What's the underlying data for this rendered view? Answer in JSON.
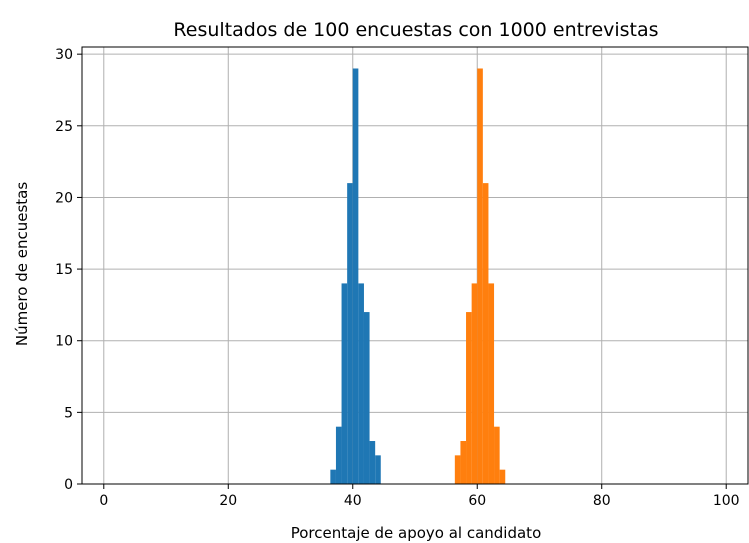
{
  "chart_data": {
    "type": "bar",
    "title": "Resultados de 100 encuestas con 1000 entrevistas",
    "xlabel": "Porcentaje de apoyo al candidato",
    "ylabel": "Número de encuestas",
    "xlim": [
      -3.5,
      103.5
    ],
    "ylim": [
      0,
      30.5
    ],
    "grid": true,
    "x_ticks": [
      0,
      20,
      40,
      60,
      80,
      100
    ],
    "y_ticks": [
      0,
      5,
      10,
      15,
      20,
      25,
      30
    ],
    "bin_width": 0.9,
    "series": [
      {
        "color": "#1f77b4",
        "bins": [
          {
            "x": 36.4,
            "count": 1
          },
          {
            "x": 37.3,
            "count": 4
          },
          {
            "x": 38.2,
            "count": 14
          },
          {
            "x": 39.1,
            "count": 21
          },
          {
            "x": 40.0,
            "count": 29
          },
          {
            "x": 40.9,
            "count": 14
          },
          {
            "x": 41.8,
            "count": 12
          },
          {
            "x": 42.7,
            "count": 3
          },
          {
            "x": 43.6,
            "count": 2
          }
        ]
      },
      {
        "color": "#ff7f0e",
        "bins": [
          {
            "x": 56.4,
            "count": 2
          },
          {
            "x": 57.3,
            "count": 3
          },
          {
            "x": 58.2,
            "count": 12
          },
          {
            "x": 59.1,
            "count": 14
          },
          {
            "x": 60.0,
            "count": 29
          },
          {
            "x": 60.9,
            "count": 21
          },
          {
            "x": 61.8,
            "count": 14
          },
          {
            "x": 62.7,
            "count": 4
          },
          {
            "x": 63.6,
            "count": 1
          }
        ]
      }
    ]
  }
}
